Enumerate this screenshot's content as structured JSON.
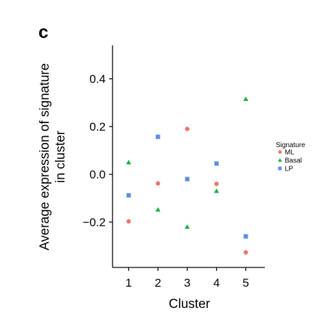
{
  "panel_label": "c",
  "chart_data": {
    "type": "scatter",
    "xlabel": "Cluster",
    "ylabel": "Average expression of signature",
    "ylabel_line2": "in cluster",
    "x": [
      1,
      2,
      3,
      4,
      5
    ],
    "x_ticks": [
      "1",
      "2",
      "3",
      "4",
      "5"
    ],
    "y_ticks": [
      "0.4",
      "0.2",
      "0.0",
      "−0.2"
    ],
    "ylim": [
      -0.39,
      0.54
    ],
    "xlim": [
      0.45,
      5.65
    ],
    "grid": false,
    "legend": {
      "title": "Signature",
      "position": "right"
    },
    "series": [
      {
        "name": "ML",
        "marker": "circle",
        "color": "#f07565",
        "values": [
          -0.197,
          -0.038,
          0.19,
          -0.04,
          -0.327
        ]
      },
      {
        "name": "Basal",
        "marker": "triangle",
        "color": "#12b43c",
        "values": [
          0.05,
          -0.148,
          -0.22,
          -0.07,
          0.315
        ]
      },
      {
        "name": "LP",
        "marker": "square",
        "color": "#5d8ff0",
        "values": [
          -0.088,
          0.157,
          -0.02,
          0.045,
          -0.26
        ]
      }
    ]
  }
}
